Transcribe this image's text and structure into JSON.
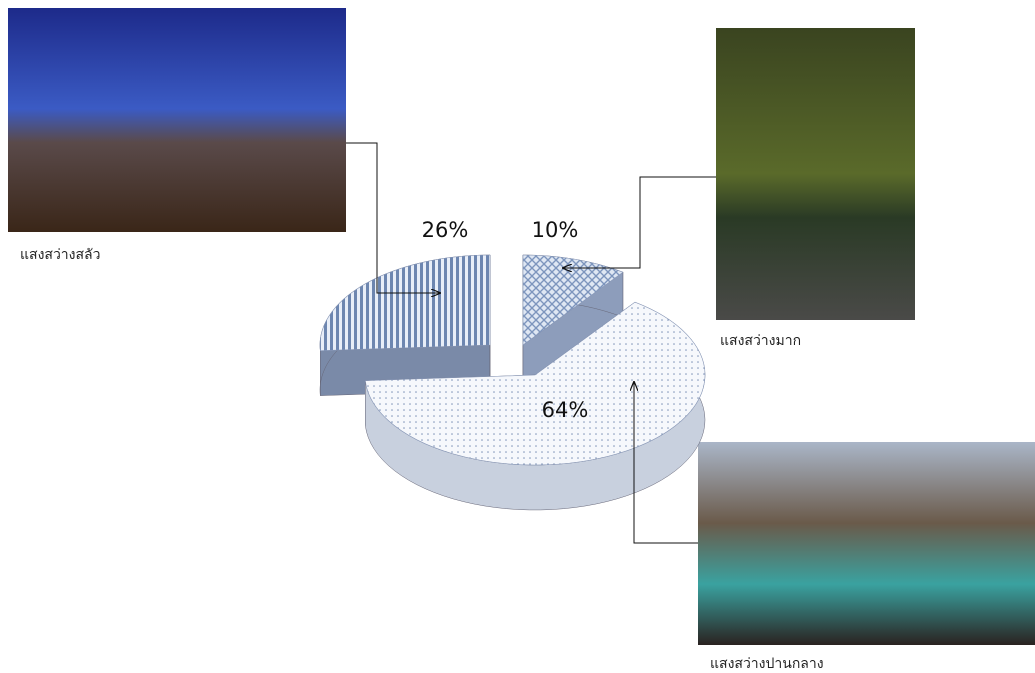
{
  "chart_data": {
    "type": "pie",
    "categories": [
      "แสงสว่างสลัว",
      "แสงสว่างมาก",
      "แสงสว่างปานกลาง"
    ],
    "values": [
      26,
      10,
      64
    ],
    "value_labels": [
      "26%",
      "10%",
      "64%"
    ]
  }
}
